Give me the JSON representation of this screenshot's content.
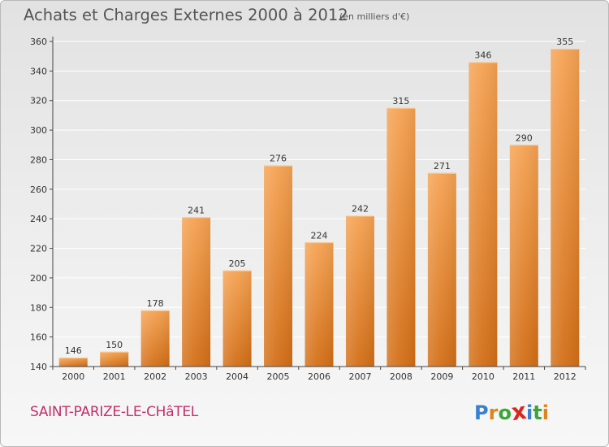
{
  "header": {
    "title": "Achats et Charges Externes 2000 à 2012",
    "subtitle": "(en milliers d'€)"
  },
  "footer": {
    "commune": "SAINT-PARIZE-LE-CHâTEL",
    "logo": {
      "text": "Proxiti",
      "letters": [
        "P",
        "r",
        "o",
        "x",
        "i",
        "t",
        "i"
      ],
      "letter_colors": [
        "#3a7fd0",
        "#e0821e",
        "#3aa53a",
        "#d8281e",
        "#3a7fd0",
        "#3aa53a",
        "#e0821e"
      ]
    }
  },
  "colors": {
    "bar_top": "#f5a252",
    "bar_bottom": "#d26e16",
    "axis": "#444444",
    "grid": "#ffffff"
  },
  "chart_data": {
    "type": "bar",
    "categories": [
      "2000",
      "2001",
      "2002",
      "2003",
      "2004",
      "2005",
      "2006",
      "2007",
      "2008",
      "2009",
      "2010",
      "2011",
      "2012"
    ],
    "values": [
      146,
      150,
      178,
      241,
      205,
      276,
      224,
      242,
      315,
      271,
      346,
      290,
      355
    ],
    "title": "Achats et Charges Externes 2000 à 2012",
    "subtitle": "(en milliers d'€)",
    "ylim": [
      140,
      360
    ],
    "yticks": [
      140,
      160,
      180,
      200,
      220,
      240,
      260,
      280,
      300,
      320,
      340,
      360
    ],
    "grid": true,
    "data_labels": true
  }
}
